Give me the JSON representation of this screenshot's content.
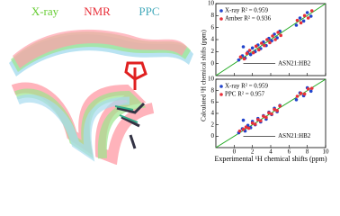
{
  "image_labels": [
    {
      "text": "X-ray",
      "color": "#66cc33"
    },
    {
      "text": "NMR",
      "color": "#e8303a"
    },
    {
      "text": "PPC",
      "color": "#44aabb"
    }
  ],
  "chart_data": [
    {
      "type": "scatter",
      "ylabel": "Calculated ¹H chemical shifts (ppm)",
      "annotation": "ASN21:HB2",
      "xlim": [
        -2,
        10
      ],
      "ylim": [
        -2,
        10
      ],
      "xticks": [
        0,
        2,
        4,
        6,
        8,
        10
      ],
      "yticks": [
        0,
        2,
        4,
        6,
        8,
        10
      ],
      "line_color": "#22aa22",
      "series": [
        {
          "name": "X-ray R² = 0.959",
          "color": "#2244cc",
          "x": [
            0.5,
            0.9,
            1.2,
            1.5,
            1.8,
            2.0,
            2.3,
            2.6,
            2.9,
            3.2,
            3.5,
            3.8,
            4.1,
            4.4,
            4.7,
            5.0,
            6.8,
            7.2,
            7.6,
            8.0,
            8.4,
            1.0
          ],
          "values": [
            0.6,
            1.3,
            0.9,
            1.9,
            1.5,
            2.6,
            2.0,
            3.1,
            2.5,
            3.6,
            3.0,
            4.2,
            3.8,
            4.9,
            4.3,
            5.4,
            6.4,
            7.6,
            7.1,
            8.5,
            7.9,
            2.8
          ]
        },
        {
          "name": "Amber R² = 0.936",
          "color": "#e8303a",
          "x": [
            0.7,
            1.1,
            1.4,
            1.7,
            2.1,
            2.4,
            2.7,
            3.0,
            3.3,
            3.6,
            3.9,
            4.2,
            4.5,
            4.8,
            5.1,
            6.9,
            7.3,
            7.7,
            8.1,
            8.5
          ],
          "values": [
            1.1,
            0.8,
            1.7,
            2.2,
            1.8,
            2.9,
            2.3,
            3.4,
            3.0,
            4.0,
            3.5,
            4.6,
            4.0,
            5.2,
            4.7,
            7.2,
            6.8,
            8.0,
            7.6,
            8.8
          ]
        }
      ]
    },
    {
      "type": "scatter",
      "xlabel": "Experimental ¹H chemical shifts (ppm)",
      "annotation": "ASN21:HB2",
      "xlim": [
        -2,
        10
      ],
      "ylim": [
        -2,
        10
      ],
      "xticks": [
        0,
        2,
        4,
        6,
        8,
        10
      ],
      "yticks": [
        0,
        2,
        4,
        6,
        8,
        10
      ],
      "line_color": "#22aa22",
      "series": [
        {
          "name": "X-ray R² = 0.959",
          "color": "#2244cc",
          "x": [
            0.5,
            0.9,
            1.2,
            1.5,
            1.8,
            2.0,
            2.3,
            2.6,
            2.9,
            3.2,
            3.5,
            3.8,
            4.1,
            4.4,
            4.7,
            5.0,
            6.8,
            7.2,
            7.6,
            8.0,
            8.4,
            1.0
          ],
          "values": [
            0.6,
            1.3,
            0.9,
            1.9,
            1.5,
            2.6,
            2.0,
            3.1,
            2.5,
            3.6,
            3.0,
            4.2,
            3.8,
            4.9,
            4.3,
            5.4,
            6.4,
            7.6,
            7.1,
            8.5,
            7.9,
            2.8
          ]
        },
        {
          "name": "PPC R² = 0.957",
          "color": "#e8303a",
          "x": [
            0.6,
            1.0,
            1.3,
            1.6,
            2.0,
            2.3,
            2.6,
            2.9,
            3.2,
            3.5,
            3.8,
            4.1,
            4.4,
            4.7,
            5.0,
            6.9,
            7.3,
            7.7,
            8.1,
            8.5
          ],
          "values": [
            0.9,
            1.2,
            1.6,
            1.4,
            2.3,
            2.1,
            2.9,
            2.7,
            3.5,
            3.3,
            4.1,
            3.9,
            4.7,
            4.5,
            5.3,
            7.0,
            7.5,
            7.4,
            8.3,
            8.4
          ]
        }
      ]
    }
  ]
}
